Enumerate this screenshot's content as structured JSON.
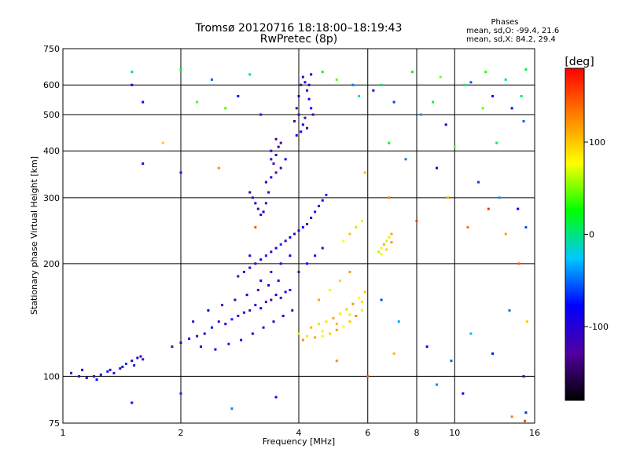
{
  "chart_data": {
    "type": "scatter",
    "title": "Tromsø 20120716 18:18:00–18:19:43",
    "subtitle": "RwPretec (8p)",
    "xlabel": "Frequency [MHz]",
    "ylabel": "Stationary phase Virtual Height [km]",
    "x_scale": "log",
    "y_scale": "log",
    "xlim": [
      1,
      16
    ],
    "ylim": [
      75,
      750
    ],
    "x_ticks": [
      1,
      2,
      4,
      6,
      8,
      10,
      16
    ],
    "y_ticks": [
      75,
      100,
      200,
      300,
      400,
      500,
      600,
      750
    ],
    "grid": true,
    "legend_placement": "top-right",
    "phase_stats": {
      "title": "Phases",
      "line_o": "mean, sd,O: -99.4, 21.6",
      "line_x": "mean, sd,X: 84.2, 29.4"
    },
    "colorbar": {
      "label": "[deg]",
      "range": [
        -180,
        180
      ],
      "ticks": [
        100,
        0,
        -100
      ],
      "colors": [
        "#000000",
        "#5000a0",
        "#0000ff",
        "#00c8ff",
        "#00ff00",
        "#ffff00",
        "#ff8000",
        "#ff0000"
      ]
    },
    "series": [
      {
        "group": "e_trace",
        "phase": -95,
        "points": [
          [
            1.05,
            102
          ],
          [
            1.1,
            100
          ],
          [
            1.15,
            99
          ],
          [
            1.2,
            100
          ],
          [
            1.25,
            101
          ],
          [
            1.3,
            103
          ],
          [
            1.35,
            102
          ],
          [
            1.4,
            105
          ],
          [
            1.45,
            108
          ],
          [
            1.5,
            110
          ],
          [
            1.55,
            112
          ],
          [
            1.6,
            111
          ],
          [
            1.12,
            104
          ],
          [
            1.22,
            98
          ],
          [
            1.32,
            104
          ],
          [
            1.42,
            106
          ],
          [
            1.52,
            107
          ],
          [
            1.58,
            113
          ]
        ]
      },
      {
        "group": "f1_low",
        "phase": -100,
        "points": [
          [
            1.9,
            120
          ],
          [
            2.0,
            123
          ],
          [
            2.1,
            126
          ],
          [
            2.2,
            128
          ],
          [
            2.3,
            130
          ],
          [
            2.4,
            135
          ],
          [
            2.5,
            140
          ],
          [
            2.6,
            138
          ],
          [
            2.7,
            142
          ],
          [
            2.8,
            145
          ],
          [
            2.9,
            148
          ],
          [
            3.0,
            150
          ],
          [
            3.1,
            155
          ],
          [
            3.2,
            152
          ],
          [
            3.3,
            158
          ],
          [
            3.4,
            160
          ],
          [
            3.5,
            165
          ],
          [
            3.6,
            162
          ],
          [
            3.7,
            168
          ],
          [
            3.8,
            170
          ],
          [
            2.15,
            140
          ],
          [
            2.35,
            150
          ],
          [
            2.55,
            155
          ],
          [
            2.75,
            160
          ],
          [
            2.95,
            165
          ],
          [
            3.15,
            170
          ],
          [
            3.35,
            175
          ],
          [
            3.55,
            180
          ],
          [
            2.25,
            120
          ],
          [
            2.45,
            118
          ],
          [
            2.65,
            122
          ],
          [
            2.85,
            125
          ],
          [
            3.05,
            130
          ],
          [
            3.25,
            135
          ],
          [
            3.45,
            140
          ],
          [
            3.65,
            145
          ],
          [
            3.85,
            150
          ]
        ]
      },
      {
        "group": "f1_mid",
        "phase": -95,
        "points": [
          [
            2.8,
            185
          ],
          [
            2.9,
            190
          ],
          [
            3.0,
            195
          ],
          [
            3.1,
            200
          ],
          [
            3.2,
            205
          ],
          [
            3.3,
            210
          ],
          [
            3.4,
            215
          ],
          [
            3.5,
            220
          ],
          [
            3.6,
            225
          ],
          [
            3.7,
            230
          ],
          [
            3.8,
            235
          ],
          [
            3.9,
            240
          ],
          [
            4.0,
            245
          ],
          [
            4.1,
            250
          ],
          [
            4.2,
            255
          ],
          [
            4.3,
            265
          ],
          [
            4.4,
            275
          ],
          [
            4.5,
            285
          ],
          [
            4.6,
            295
          ],
          [
            4.7,
            305
          ],
          [
            3.0,
            210
          ],
          [
            3.2,
            180
          ],
          [
            3.4,
            190
          ],
          [
            3.6,
            200
          ],
          [
            3.8,
            210
          ],
          [
            4.0,
            190
          ],
          [
            4.2,
            200
          ],
          [
            4.4,
            210
          ],
          [
            4.6,
            220
          ]
        ]
      },
      {
        "group": "f2_spike",
        "phase": -110,
        "points": [
          [
            3.0,
            310
          ],
          [
            3.05,
            300
          ],
          [
            3.1,
            290
          ],
          [
            3.15,
            280
          ],
          [
            3.2,
            270
          ],
          [
            3.25,
            275
          ],
          [
            3.3,
            290
          ],
          [
            3.35,
            310
          ],
          [
            3.4,
            340
          ],
          [
            3.45,
            370
          ],
          [
            3.5,
            390
          ],
          [
            3.55,
            410
          ],
          [
            3.6,
            420
          ],
          [
            3.4,
            400
          ],
          [
            3.5,
            430
          ],
          [
            3.6,
            360
          ],
          [
            3.7,
            380
          ],
          [
            3.5,
            350
          ],
          [
            3.4,
            380
          ],
          [
            3.3,
            330
          ]
        ]
      },
      {
        "group": "f2_top",
        "phase": -105,
        "points": [
          [
            3.9,
            480
          ],
          [
            3.95,
            520
          ],
          [
            4.0,
            560
          ],
          [
            4.05,
            600
          ],
          [
            4.1,
            630
          ],
          [
            4.15,
            610
          ],
          [
            4.2,
            580
          ],
          [
            4.25,
            550
          ],
          [
            4.3,
            520
          ],
          [
            4.0,
            500
          ],
          [
            4.1,
            470
          ],
          [
            4.2,
            460
          ],
          [
            3.95,
            440
          ],
          [
            4.05,
            450
          ],
          [
            4.15,
            490
          ],
          [
            4.25,
            600
          ],
          [
            4.3,
            640
          ],
          [
            4.35,
            500
          ]
        ]
      },
      {
        "group": "x_trace",
        "phase": 95,
        "points": [
          [
            4.0,
            130
          ],
          [
            4.2,
            128
          ],
          [
            4.4,
            127
          ],
          [
            4.6,
            128
          ],
          [
            4.8,
            130
          ],
          [
            5.0,
            133
          ],
          [
            5.2,
            136
          ],
          [
            5.4,
            140
          ],
          [
            5.6,
            145
          ],
          [
            5.8,
            150
          ],
          [
            4.3,
            135
          ],
          [
            4.5,
            138
          ],
          [
            4.7,
            140
          ],
          [
            4.9,
            143
          ],
          [
            5.1,
            147
          ],
          [
            5.3,
            151
          ],
          [
            5.5,
            156
          ],
          [
            5.7,
            162
          ],
          [
            5.9,
            168
          ],
          [
            4.1,
            125
          ],
          [
            4.6,
            132
          ],
          [
            5.0,
            138
          ],
          [
            5.4,
            146
          ],
          [
            5.8,
            158
          ],
          [
            4.5,
            160
          ],
          [
            4.8,
            170
          ],
          [
            5.1,
            180
          ],
          [
            5.4,
            190
          ]
        ]
      },
      {
        "group": "x_high",
        "phase": 90,
        "points": [
          [
            6.4,
            215
          ],
          [
            6.5,
            220
          ],
          [
            6.6,
            225
          ],
          [
            6.7,
            230
          ],
          [
            6.8,
            235
          ],
          [
            6.9,
            240
          ],
          [
            6.5,
            212
          ],
          [
            6.7,
            218
          ],
          [
            6.9,
            228
          ],
          [
            5.2,
            230
          ],
          [
            5.4,
            240
          ],
          [
            5.6,
            250
          ],
          [
            5.8,
            260
          ]
        ]
      },
      {
        "group": "scatter_high",
        "phase": -70,
        "points": [
          [
            1.5,
            600
          ],
          [
            1.6,
            540
          ],
          [
            2.4,
            620
          ],
          [
            2.8,
            560
          ],
          [
            3.2,
            500
          ],
          [
            5.5,
            600
          ],
          [
            6.2,
            580
          ],
          [
            7.0,
            540
          ],
          [
            8.2,
            500
          ],
          [
            9.5,
            470
          ],
          [
            11.0,
            610
          ],
          [
            12.5,
            560
          ],
          [
            14.0,
            520
          ],
          [
            15.0,
            480
          ],
          [
            1.6,
            370
          ],
          [
            2.0,
            350
          ],
          [
            7.5,
            380
          ],
          [
            9.0,
            360
          ],
          [
            11.5,
            330
          ],
          [
            13.0,
            300
          ],
          [
            14.5,
            280
          ],
          [
            15.2,
            250
          ]
        ]
      },
      {
        "group": "scatter_low",
        "phase": -60,
        "points": [
          [
            1.5,
            85
          ],
          [
            2.0,
            90
          ],
          [
            2.7,
            82
          ],
          [
            3.5,
            88
          ],
          [
            6.5,
            160
          ],
          [
            7.2,
            140
          ],
          [
            8.5,
            120
          ],
          [
            9.8,
            110
          ],
          [
            11.0,
            130
          ],
          [
            12.5,
            115
          ],
          [
            13.8,
            150
          ],
          [
            15.0,
            100
          ],
          [
            15.2,
            80
          ],
          [
            9.0,
            95
          ],
          [
            10.5,
            90
          ]
        ]
      },
      {
        "group": "scatter_mixed",
        "phase": 20,
        "points": [
          [
            1.5,
            650
          ],
          [
            2.0,
            660
          ],
          [
            2.6,
            520
          ],
          [
            3.0,
            640
          ],
          [
            4.6,
            650
          ],
          [
            5.0,
            620
          ],
          [
            6.5,
            600
          ],
          [
            7.8,
            650
          ],
          [
            9.2,
            630
          ],
          [
            10.6,
            600
          ],
          [
            12.0,
            650
          ],
          [
            13.5,
            620
          ],
          [
            15.2,
            660
          ],
          [
            2.2,
            540
          ],
          [
            5.7,
            560
          ],
          [
            8.8,
            540
          ],
          [
            11.8,
            520
          ],
          [
            14.8,
            560
          ],
          [
            6.8,
            420
          ],
          [
            10.0,
            410
          ],
          [
            12.8,
            420
          ]
        ]
      },
      {
        "group": "scatter_warm",
        "phase": 130,
        "points": [
          [
            1.8,
            420
          ],
          [
            2.5,
            360
          ],
          [
            3.1,
            250
          ],
          [
            5.9,
            350
          ],
          [
            6.8,
            300
          ],
          [
            8.0,
            260
          ],
          [
            9.6,
            300
          ],
          [
            10.8,
            250
          ],
          [
            12.2,
            280
          ],
          [
            13.5,
            240
          ],
          [
            14.6,
            200
          ],
          [
            15.3,
            140
          ],
          [
            5.0,
            110
          ],
          [
            6.0,
            100
          ],
          [
            7.0,
            115
          ],
          [
            14.0,
            78
          ],
          [
            15.1,
            76
          ]
        ]
      }
    ]
  }
}
